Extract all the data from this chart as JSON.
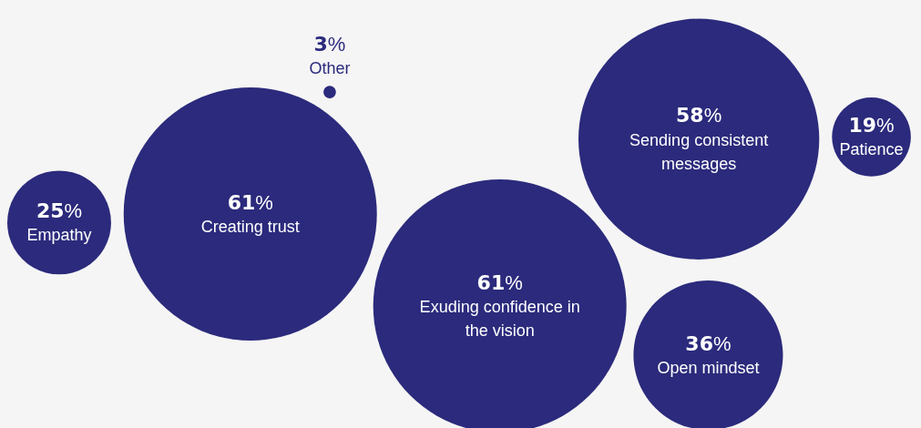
{
  "chart_data": {
    "type": "other",
    "categories": [
      "Empathy",
      "Creating trust",
      "Other",
      "Exuding confidence in the vision",
      "Sending consistent messages",
      "Open mindset",
      "Patience"
    ],
    "values": [
      25,
      61,
      3,
      61,
      58,
      36,
      19
    ],
    "value_labels": [
      "25%",
      "61%",
      "3%",
      "61%",
      "58%",
      "36%",
      "19%"
    ],
    "data_labels": true,
    "color": "#2b2a7c"
  }
}
